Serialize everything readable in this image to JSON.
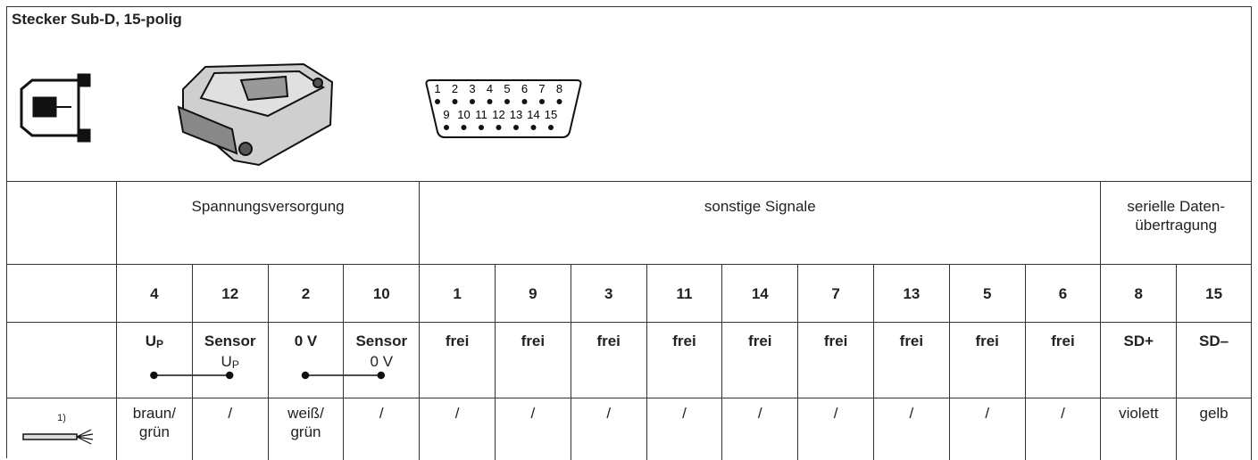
{
  "header": {
    "title": "Stecker Sub-D, 15-polig"
  },
  "pinout": {
    "top": [
      1,
      2,
      3,
      4,
      5,
      6,
      7,
      8
    ],
    "bottom": [
      9,
      10,
      11,
      12,
      13,
      14,
      15
    ]
  },
  "table": {
    "groups": [
      "Spannungsversorgung",
      "sonstige Signale",
      "serielle Daten-übertragung"
    ],
    "pins": [
      4,
      12,
      2,
      10,
      1,
      9,
      3,
      11,
      14,
      7,
      13,
      5,
      6,
      8,
      15
    ],
    "signals": [
      {
        "label": "U",
        "label_sub": "P"
      },
      {
        "label": "Sensor",
        "note": "U",
        "note_sub": "P"
      },
      {
        "label": "0 V"
      },
      {
        "label": "Sensor",
        "note": "0 V"
      },
      {
        "label": "frei"
      },
      {
        "label": "frei"
      },
      {
        "label": "frei"
      },
      {
        "label": "frei"
      },
      {
        "label": "frei"
      },
      {
        "label": "frei"
      },
      {
        "label": "frei"
      },
      {
        "label": "frei"
      },
      {
        "label": "frei"
      },
      {
        "label": "SD+"
      },
      {
        "label": "SD–"
      }
    ],
    "footnote_mark": "1)",
    "wires": [
      "braun/ grün",
      "/",
      "weiß/ grün",
      "/",
      "/",
      "/",
      "/",
      "/",
      "/",
      "/",
      "/",
      "/",
      "/",
      "violett",
      "gelb"
    ]
  }
}
